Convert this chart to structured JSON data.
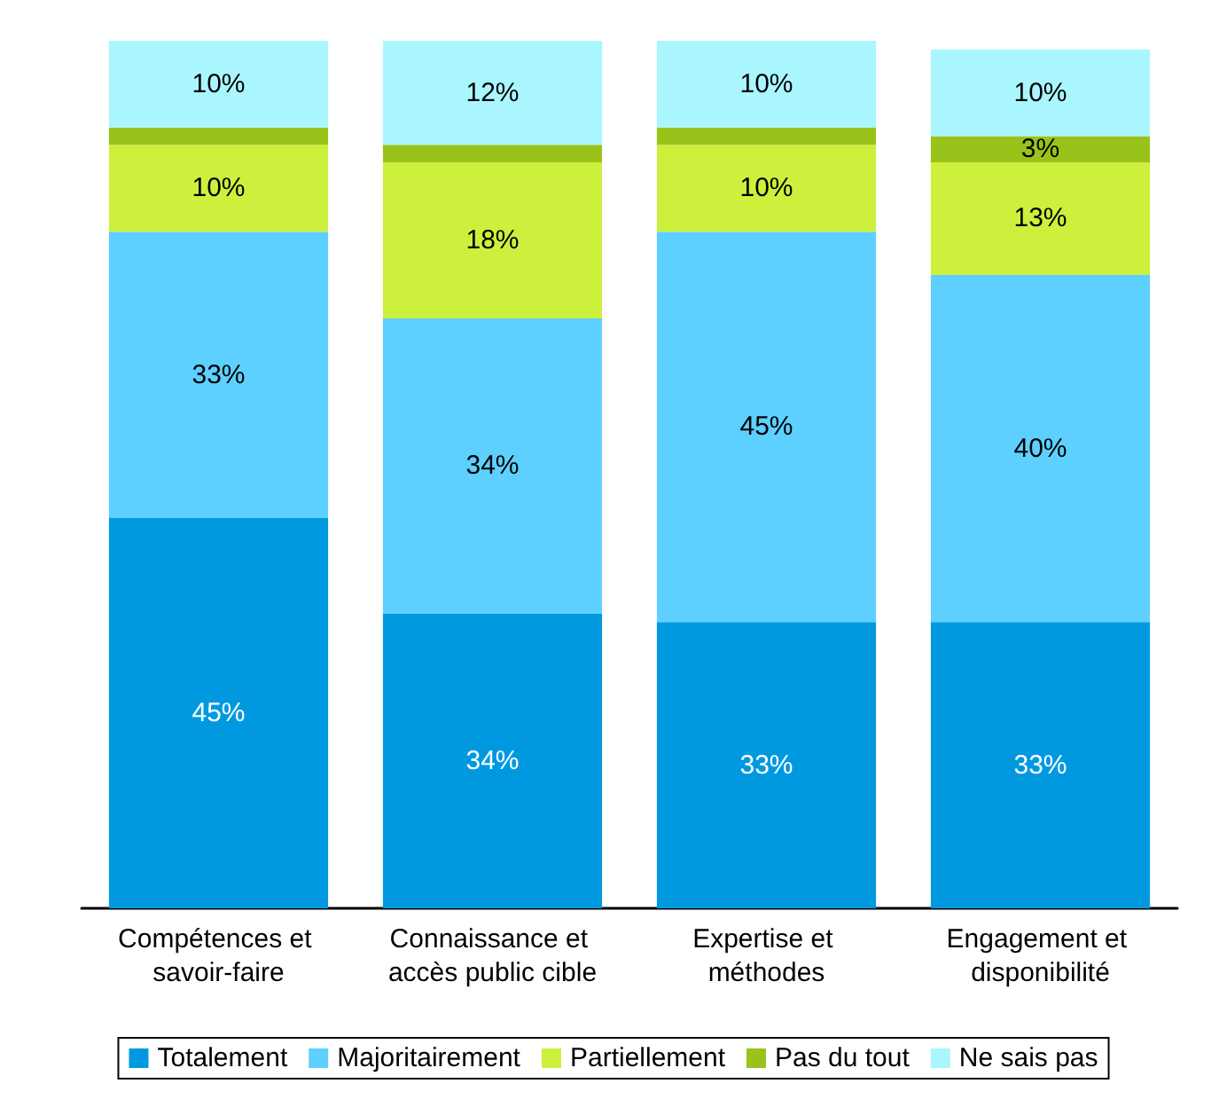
{
  "chart_data": {
    "type": "bar",
    "stacked": true,
    "categories": [
      "Compétences et savoir-faire",
      "Connaissance et accès public cible",
      "Expertise et méthodes",
      "Engagement et disponibilité"
    ],
    "series": [
      {
        "name": "Totalement",
        "color": "#0099e0",
        "values": [
          45,
          34,
          33,
          33
        ],
        "value_labels": [
          "45%",
          "34%",
          "33%",
          "33%"
        ]
      },
      {
        "name": "Majoritairement",
        "color": "#5dd0ff",
        "values": [
          33,
          34,
          45,
          40
        ],
        "value_labels": [
          "33%",
          "34%",
          "45%",
          "40%"
        ]
      },
      {
        "name": "Partiellement",
        "color": "#ccf03c",
        "values": [
          10,
          18,
          10,
          13
        ],
        "value_labels": [
          "10%",
          "18%",
          "10%",
          "13%"
        ]
      },
      {
        "name": "Pas du tout",
        "color": "#99c31a",
        "values": [
          2,
          2,
          2,
          3
        ],
        "value_labels": [
          null,
          null,
          null,
          "3%"
        ]
      },
      {
        "name": "Ne sais pas",
        "color": "#aaf6ff",
        "values": [
          10,
          12,
          10,
          10
        ],
        "value_labels": [
          "10%",
          "12%",
          "10%",
          "10%"
        ]
      }
    ],
    "legend": "bottom"
  }
}
